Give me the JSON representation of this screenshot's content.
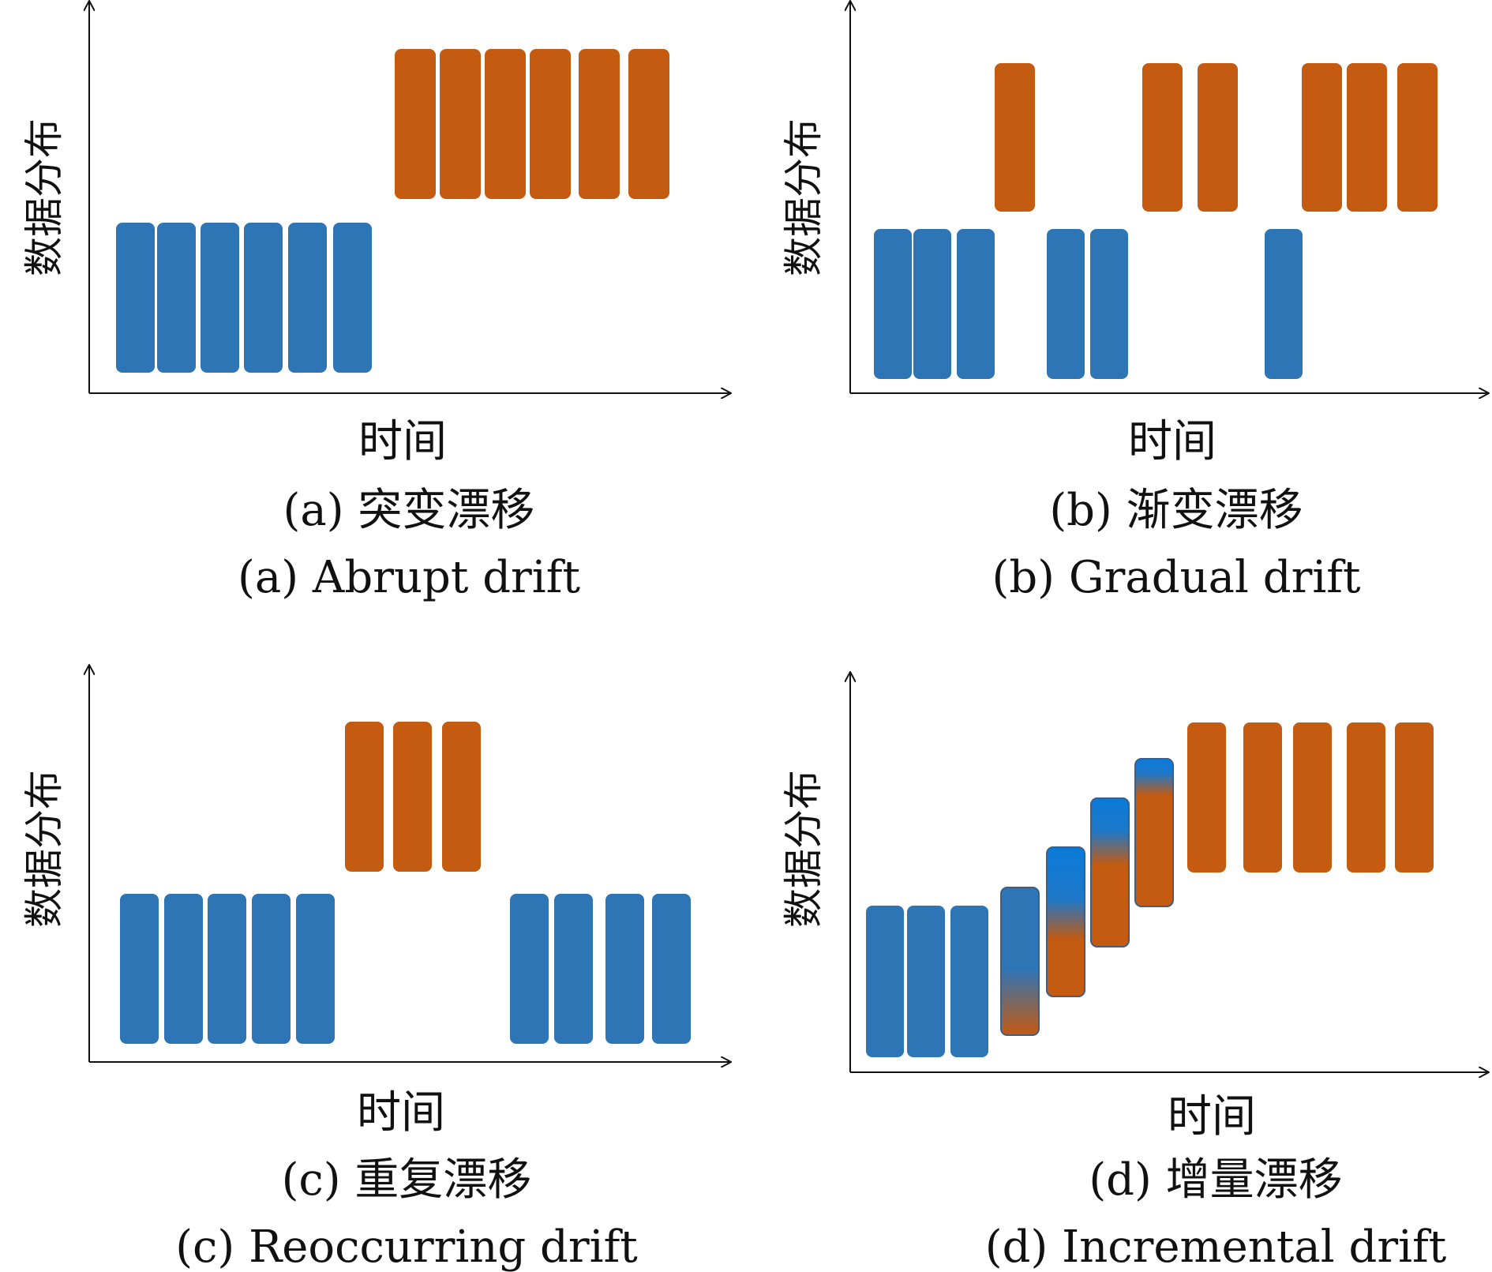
{
  "colors": {
    "old": "#2E75B6",
    "new": "#C55A11",
    "bright_blue": "#0A7AD8",
    "axis": "#111111",
    "text": "#111111"
  },
  "panels": [
    {
      "id": "a",
      "ylabel": "数据分布",
      "xlabel": "时间",
      "caption_cn": "(a) 突变漂移",
      "caption_en": "(a) Abrupt drift",
      "sequence": [
        "old",
        "old",
        "old",
        "old",
        "old",
        "old",
        "new",
        "new",
        "new",
        "new",
        "new",
        "new"
      ]
    },
    {
      "id": "b",
      "ylabel": "数据分布",
      "xlabel": "时间",
      "caption_cn": "(b) 渐变漂移",
      "caption_en": "(b) Gradual drift",
      "sequence": [
        "old",
        "old",
        "old",
        "new",
        "old",
        "old",
        "new",
        "new",
        "old",
        "new",
        "new",
        "new"
      ]
    },
    {
      "id": "c",
      "ylabel": "数据分布",
      "xlabel": "时间",
      "caption_cn": "(c) 重复漂移",
      "caption_en": "(c) Reoccurring drift",
      "sequence": [
        "old",
        "old",
        "old",
        "old",
        "old",
        "new",
        "new",
        "new",
        "old",
        "old",
        "old",
        "old"
      ]
    },
    {
      "id": "d",
      "ylabel": "数据分布",
      "xlabel": "时间",
      "caption_cn": "(d) 增量漂移",
      "caption_en": "(d) Incremental drift",
      "sequence": [
        "old",
        "old",
        "old",
        "mix",
        "mix",
        "mix",
        "mix",
        "new",
        "new",
        "new",
        "new",
        "new"
      ]
    }
  ]
}
